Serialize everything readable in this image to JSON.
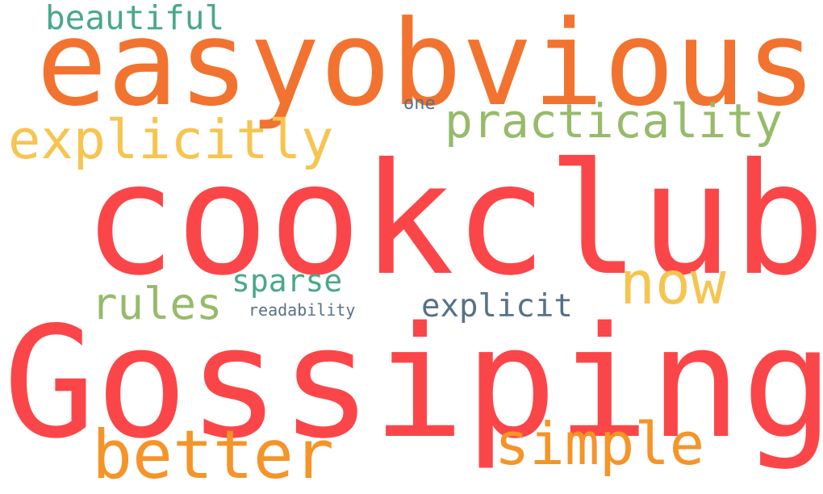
{
  "words": {
    "beautiful": {
      "text": "beautiful",
      "color": "#4aa888"
    },
    "easyobvious": {
      "text": "easyobvious",
      "color": "#f2732f"
    },
    "one": {
      "text": "one",
      "color": "#587189"
    },
    "practicality": {
      "text": "practicality",
      "color": "#96bb6a"
    },
    "explicitly": {
      "text": "explicitly",
      "color": "#f6c550"
    },
    "cookclub": {
      "text": "cookclub",
      "color": "#fb4649"
    },
    "now": {
      "text": "now",
      "color": "#f6c550"
    },
    "sparse": {
      "text": "sparse",
      "color": "#4aa888"
    },
    "rules": {
      "text": "rules",
      "color": "#96bb6a"
    },
    "explicit": {
      "text": "explicit",
      "color": "#587189"
    },
    "readability": {
      "text": "readability",
      "color": "#587189"
    },
    "gossiping": {
      "text": "Gossiping",
      "color": "#fb4649"
    },
    "better": {
      "text": "better",
      "color": "#f59428"
    },
    "simple": {
      "text": "simple",
      "color": "#f59428"
    }
  }
}
